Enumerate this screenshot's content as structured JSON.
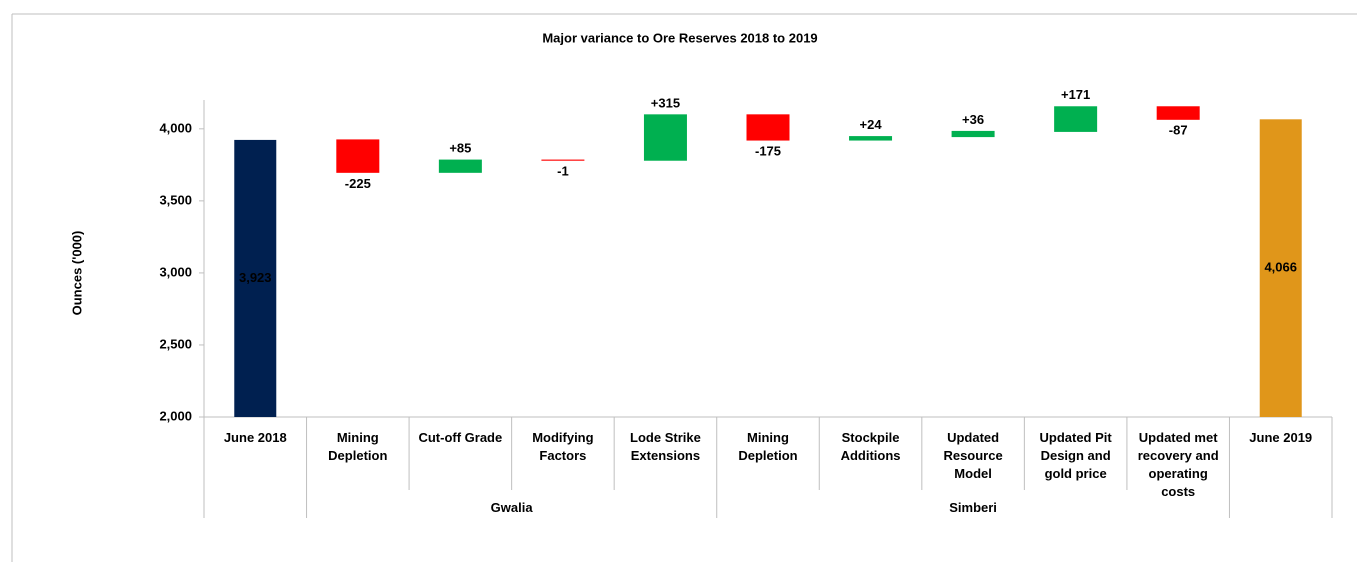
{
  "chart_data": {
    "type": "waterfall",
    "title": "Major variance to Ore Reserves 2018 to 2019",
    "y_label": "Ounces ('000)",
    "categories": [
      "June 2018",
      "Mining Depletion",
      "Cut-off Grade",
      "Modifying Factors",
      "Lode Strike Extensions",
      "Mining Depletion",
      "Stockpile Additions",
      "Updated Resource Model",
      "Updated Pit Design and gold price",
      "Updated met recovery and operating costs",
      "June 2019"
    ],
    "measures": [
      "absolute",
      "relative",
      "relative",
      "relative",
      "relative",
      "relative",
      "relative",
      "relative",
      "relative",
      "relative",
      "absolute"
    ],
    "values": [
      3923,
      -225,
      85,
      -1,
      315,
      -175,
      24,
      36,
      171,
      -87,
      4066
    ],
    "value_labels": [
      "3,923",
      "-225",
      "+85",
      "-1",
      "+315",
      "-175",
      "+24",
      "+36",
      "+171",
      "-87",
      "4,066"
    ],
    "colors": [
      "#002050",
      "#ff0000",
      "#00b050",
      "#ff0000",
      "#00b050",
      "#ff0000",
      "#00b050",
      "#00b050",
      "#00b050",
      "#ff0000",
      "#e0961a"
    ],
    "groups": [
      {
        "name": "Gwalia",
        "from": 1,
        "to": 5
      },
      {
        "name": "Simberi",
        "from": 5,
        "to": 10
      }
    ],
    "ylim": [
      2000,
      4200
    ],
    "yticks": [
      {
        "value": 2000,
        "label": "2,000"
      },
      {
        "value": 2500,
        "label": "2,500"
      },
      {
        "value": 3000,
        "label": "3,000"
      },
      {
        "value": 3500,
        "label": "3,500"
      },
      {
        "value": 4000,
        "label": "4,000"
      }
    ]
  }
}
